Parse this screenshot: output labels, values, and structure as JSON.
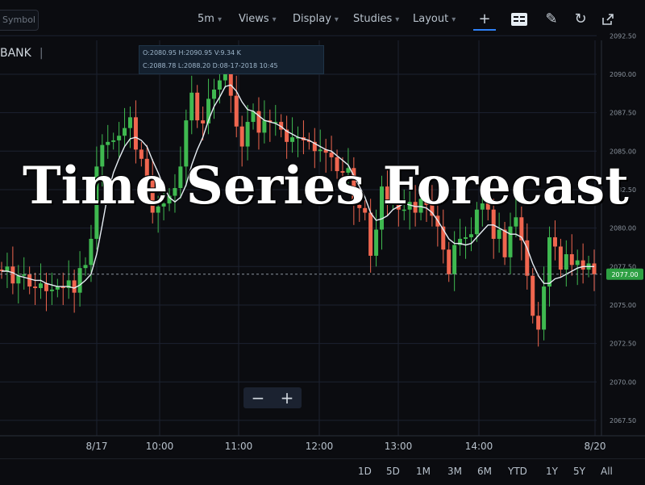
{
  "symbol_placeholder": "Symbol",
  "ticker": "BANK",
  "toolbar": {
    "interval": "5m",
    "views": "Views",
    "display": "Display",
    "studies": "Studies",
    "layout": "Layout"
  },
  "ohlc": {
    "line1": "O:2080.95  H:2090.95  V:9.34 K",
    "line2": "C:2088.78  L:2088.20  D:08-17-2018 10:45"
  },
  "overlay_title": "Time Series Forecast",
  "price_label": "2077.00",
  "ranges": [
    "1D",
    "5D",
    "1M",
    "3M",
    "6M",
    "YTD",
    "1Y",
    "5Y",
    "All"
  ],
  "colors": {
    "background": "#0b0c10",
    "up": "#3fb950",
    "down": "#f0664f",
    "ma_line": "#e6edf3",
    "price_label_bg": "#2ea043",
    "accent": "#2f81f7"
  },
  "chart_data": {
    "type": "line",
    "title": "",
    "ylim": [
      2066.5,
      2092.2
    ],
    "y_ticks": [
      "2092.50",
      "2090.00",
      "2087.50",
      "2085.00",
      "2082.50",
      "2080.00",
      "2077.50",
      "2075.00",
      "2072.50",
      "2070.00",
      "2067.50"
    ],
    "x_tick_labels": [
      "8/17",
      "10:00",
      "11:00",
      "12:00",
      "13:00",
      "14:00",
      "8/20"
    ],
    "current_price": 2077.0,
    "candles": {
      "open": [
        2077.3,
        2077.2,
        2077.5,
        2076.4,
        2076.9,
        2077.0,
        2076.2,
        2076.1,
        2076.4,
        2075.9,
        2076.0,
        2076.2,
        2076.1,
        2076.6,
        2075.8,
        2077.4,
        2077.6,
        2079.3,
        2084.0,
        2085.4,
        2085.6,
        2085.7,
        2086.0,
        2086.5,
        2087.2,
        2085.1,
        2084.5,
        2083.2,
        2081.0,
        2081.4,
        2081.6,
        2082.1,
        2082.6,
        2084.0,
        2087.0,
        2088.8,
        2087.0,
        2086.8,
        2088.4,
        2089.0,
        2089.6,
        2090.4,
        2088.6,
        2086.6,
        2085.3,
        2086.9,
        2087.6,
        2086.2,
        2087.0,
        2086.9,
        2086.9,
        2086.4,
        2085.6,
        2085.9,
        2085.9,
        2085.7,
        2085.6,
        2085.0,
        2085.1,
        2084.9,
        2084.6,
        2083.7,
        2083.6,
        2083.9,
        2081.5,
        2081.3,
        2081.0,
        2078.2,
        2079.9,
        2082.7,
        2081.7,
        2081.7,
        2081.2,
        2081.2,
        2081.7,
        2081.0,
        2081.9,
        2081.5,
        2080.8,
        2080.1,
        2078.6,
        2077.0,
        2078.9,
        2079.3,
        2079.4,
        2079.6,
        2081.2,
        2081.6,
        2081.2,
        2079.3,
        2079.9,
        2078.1,
        2080.1,
        2080.7,
        2079.2,
        2076.9,
        2074.3,
        2073.4,
        2076.2,
        2079.4,
        2078.8,
        2077.3,
        2078.3,
        2077.6,
        2077.9,
        2077.3,
        2077.7
      ],
      "close": [
        2077.2,
        2077.5,
        2076.4,
        2076.9,
        2077.0,
        2076.2,
        2076.1,
        2076.4,
        2075.9,
        2076.0,
        2076.2,
        2076.1,
        2076.6,
        2075.8,
        2077.4,
        2077.6,
        2079.3,
        2084.0,
        2085.4,
        2085.6,
        2085.7,
        2086.0,
        2086.5,
        2087.2,
        2085.1,
        2084.5,
        2083.2,
        2081.0,
        2081.4,
        2081.6,
        2082.1,
        2082.6,
        2084.0,
        2087.0,
        2088.8,
        2087.0,
        2086.8,
        2088.4,
        2089.0,
        2089.6,
        2090.4,
        2088.6,
        2086.6,
        2085.3,
        2086.9,
        2087.6,
        2086.2,
        2087.0,
        2086.9,
        2086.9,
        2086.4,
        2085.6,
        2085.9,
        2085.9,
        2085.7,
        2085.6,
        2085.0,
        2085.1,
        2084.9,
        2084.6,
        2083.7,
        2083.6,
        2083.9,
        2081.5,
        2081.3,
        2081.0,
        2078.2,
        2079.9,
        2082.7,
        2081.7,
        2081.7,
        2081.2,
        2081.2,
        2081.7,
        2081.0,
        2081.9,
        2081.5,
        2080.8,
        2080.1,
        2078.6,
        2077.0,
        2078.9,
        2079.3,
        2079.4,
        2079.6,
        2081.2,
        2081.6,
        2081.2,
        2079.3,
        2079.9,
        2078.1,
        2080.1,
        2080.7,
        2079.2,
        2076.9,
        2074.3,
        2073.4,
        2076.2,
        2079.4,
        2078.8,
        2077.3,
        2078.3,
        2077.6,
        2077.9,
        2077.3,
        2077.7,
        2077.0
      ]
    },
    "moving_average": [
      2077.2,
      2077.2,
      2077.1,
      2076.9,
      2076.8,
      2076.7,
      2076.6,
      2076.6,
      2076.4,
      2076.3,
      2076.2,
      2076.2,
      2076.2,
      2076.1,
      2076.3,
      2076.6,
      2077.0,
      2078.3,
      2080.2,
      2082.2,
      2083.6,
      2084.5,
      2085.3,
      2085.8,
      2085.9,
      2085.7,
      2085.3,
      2084.4,
      2083.6,
      2082.7,
      2082.0,
      2081.7,
      2082.0,
      2082.8,
      2084.1,
      2085.1,
      2085.9,
      2087.0,
      2087.9,
      2088.5,
      2089.2,
      2089.3,
      2088.9,
      2088.2,
      2087.7,
      2087.6,
      2087.3,
      2087.0,
      2086.9,
      2086.8,
      2086.6,
      2086.3,
      2086.1,
      2085.9,
      2085.8,
      2085.7,
      2085.5,
      2085.3,
      2085.1,
      2085.0,
      2084.7,
      2084.4,
      2084.1,
      2083.4,
      2082.7,
      2082.0,
      2081.0,
      2080.5,
      2080.6,
      2080.8,
      2081.2,
      2081.4,
      2081.6,
      2081.5,
      2081.4,
      2081.4,
      2081.3,
      2081.0,
      2080.5,
      2079.9,
      2079.3,
      2079.0,
      2079.0,
      2078.9,
      2079.0,
      2079.4,
      2079.8,
      2080.2,
      2080.2,
      2080.0,
      2079.8,
      2079.6,
      2079.6,
      2079.4,
      2078.7,
      2077.7,
      2076.9,
      2076.4,
      2076.4,
      2076.7,
      2076.8,
      2077.0,
      2077.2,
      2077.4,
      2077.5,
      2077.5,
      2077.5
    ],
    "grid": true,
    "legend": "none"
  }
}
